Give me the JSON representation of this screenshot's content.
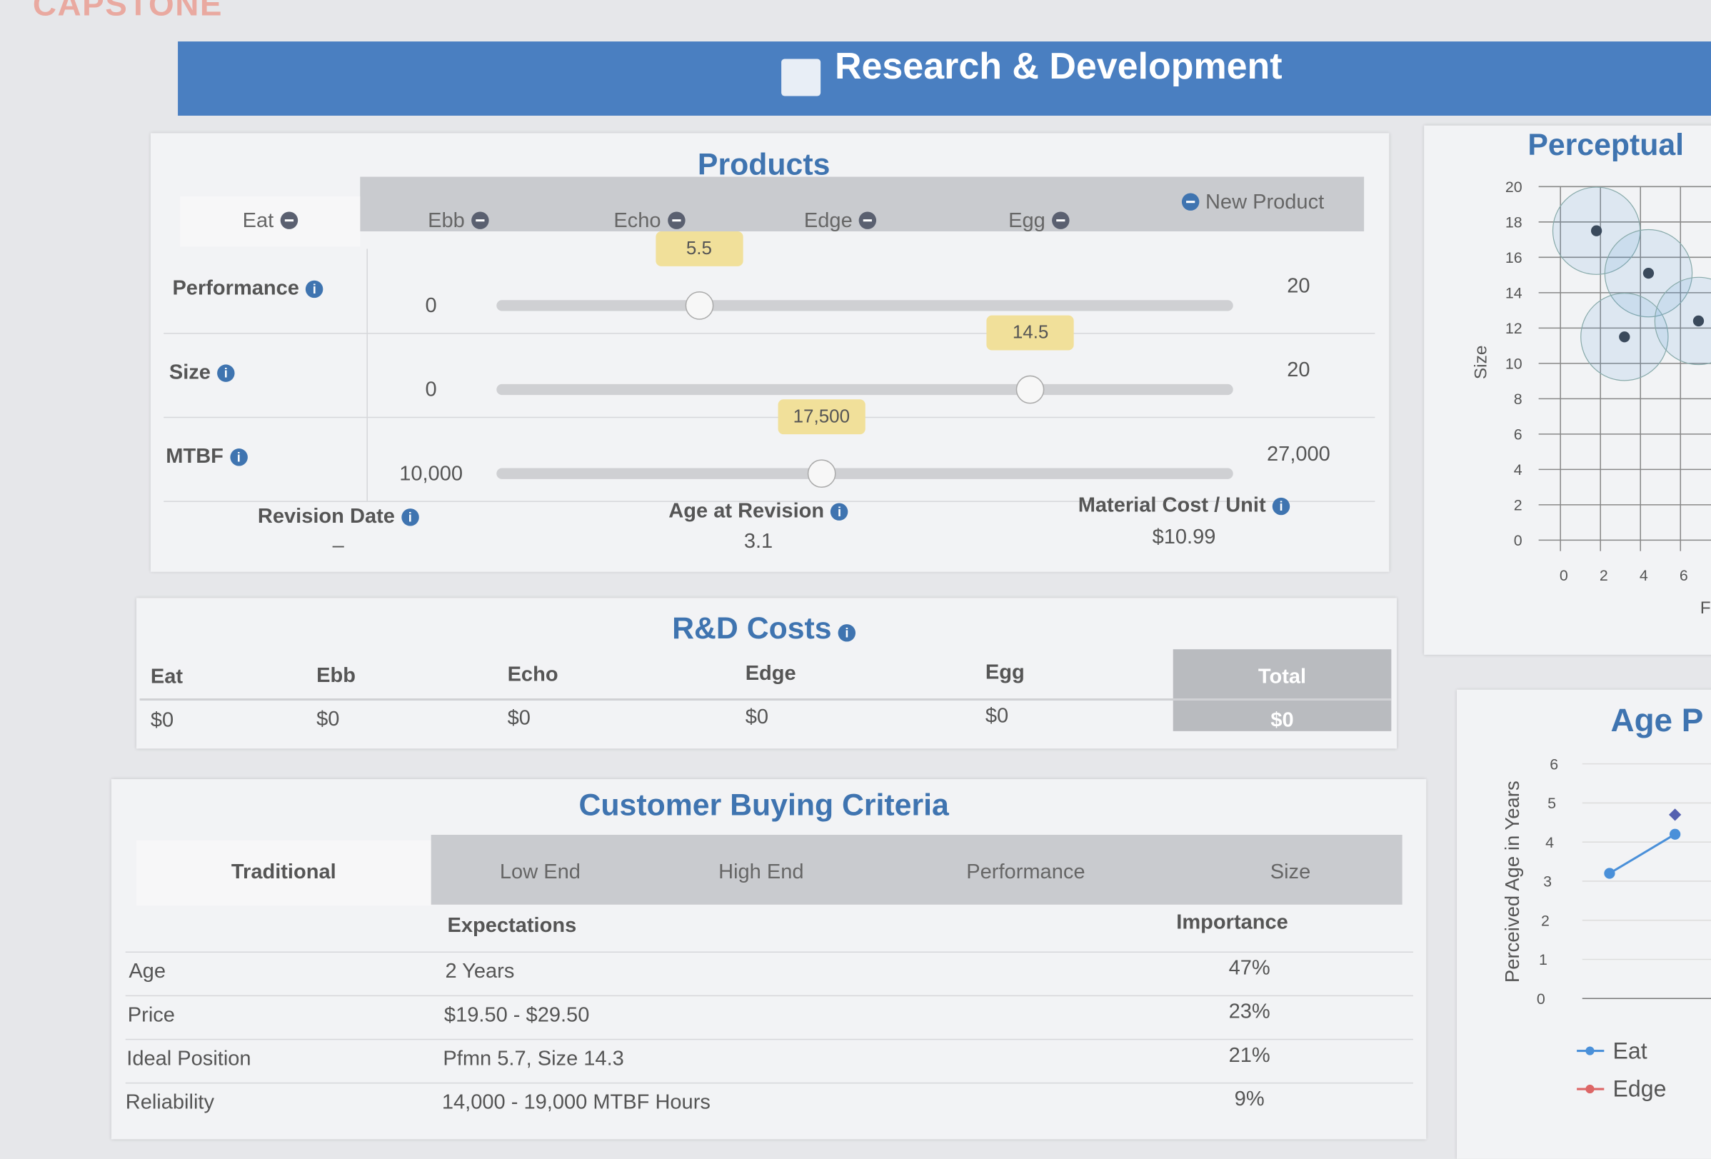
{
  "brand": "CAPSTONE",
  "header": {
    "title": "Research & Development"
  },
  "products": {
    "title": "Products",
    "tabs": [
      "Eat",
      "Ebb",
      "Echo",
      "Edge",
      "Egg"
    ],
    "new_product": "New Product",
    "sliders": [
      {
        "label": "Performance",
        "min": 0,
        "max": 20,
        "value": 5.5
      },
      {
        "label": "Size",
        "min": 0,
        "max": 20,
        "value": 14.5
      },
      {
        "label": "MTBF",
        "min": {
          "value": 10000,
          "label": "10,000"
        },
        "max": {
          "value": 27000,
          "label": "27,000"
        },
        "value": {
          "value": 17500,
          "label": "17,500"
        }
      }
    ],
    "fields": [
      {
        "label": "Revision Date",
        "value": "–"
      },
      {
        "label": "Age at Revision",
        "value": "3.1"
      },
      {
        "label": "Material Cost / Unit",
        "value": "$10.99"
      }
    ]
  },
  "rd_costs": {
    "title": "R&D Costs",
    "columns": [
      "Eat",
      "Ebb",
      "Echo",
      "Edge",
      "Egg",
      "Total"
    ],
    "values": [
      "$0",
      "$0",
      "$0",
      "$0",
      "$0",
      "$0"
    ]
  },
  "criteria": {
    "title": "Customer Buying Criteria",
    "tabs": [
      "Traditional",
      "Low End",
      "High End",
      "Performance",
      "Size"
    ],
    "headers": [
      "Expectations",
      "Importance"
    ],
    "rows": [
      [
        "Age",
        "2 Years",
        "47%"
      ],
      [
        "Price",
        "$19.50 - $29.50",
        "23%"
      ],
      [
        "Ideal Position",
        "Pfmn 5.7, Size 14.3",
        "21%"
      ],
      [
        "Reliability",
        "14,000 - 19,000 MTBF Hours",
        "9%"
      ]
    ]
  },
  "perceptual_map": {
    "title": "Perceptual",
    "y_label": "Size",
    "x_label": "F",
    "xlim": [
      0,
      7.5
    ],
    "ylim": [
      0,
      20
    ],
    "xticks": [
      0,
      2,
      4,
      6
    ],
    "yticks": [
      0,
      2,
      4,
      6,
      8,
      10,
      12,
      14,
      16,
      18,
      20
    ],
    "points": {
      "x": [
        1.8,
        4.4,
        3.2,
        6.9
      ],
      "y": [
        17.5,
        15.1,
        11.5,
        12.4
      ]
    }
  },
  "age_chart": {
    "title": "Age P",
    "y_label": "Perceived Age in Years",
    "ylim": [
      0,
      6
    ],
    "yticks": [
      0,
      1,
      2,
      3,
      4,
      5,
      6
    ],
    "categories": [
      null,
      null
    ],
    "series": [
      {
        "name": "Eat",
        "color": "#4a90d9",
        "values": [
          3.2,
          4.2
        ]
      },
      {
        "name": "Edge",
        "color": "#5560b0",
        "values": [
          null,
          4.7
        ]
      }
    ]
  }
}
